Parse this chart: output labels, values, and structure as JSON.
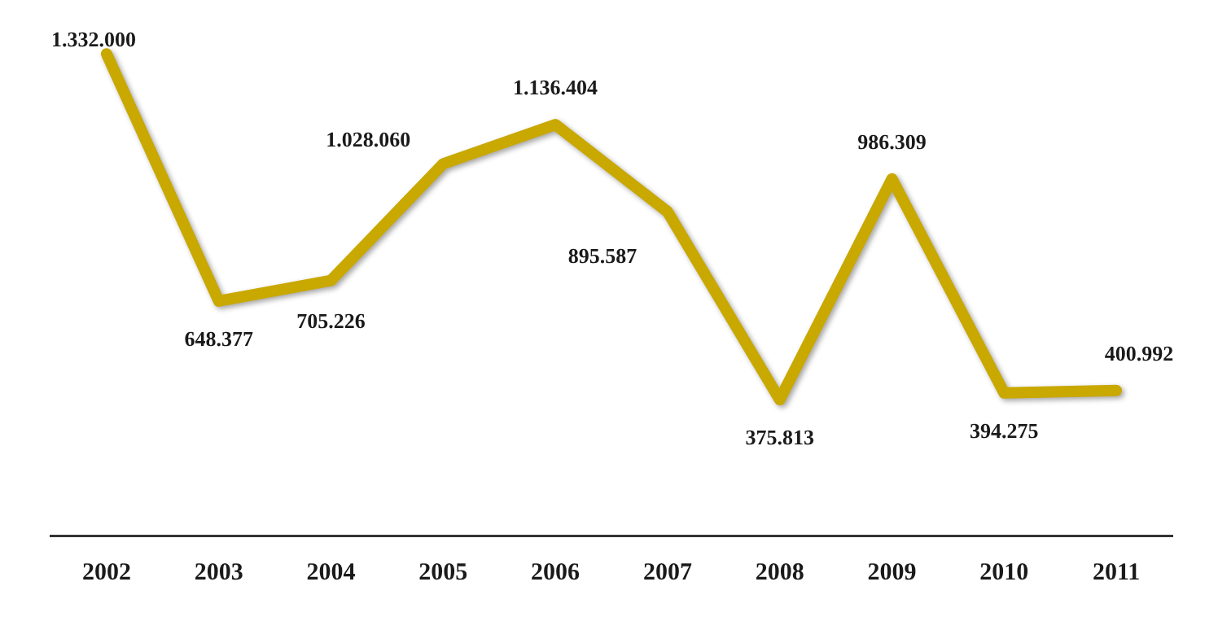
{
  "chart_data": {
    "type": "line",
    "categories": [
      "2002",
      "2003",
      "2004",
      "2005",
      "2006",
      "2007",
      "2008",
      "2009",
      "2010",
      "2011"
    ],
    "series": [
      {
        "color": "#c9a800",
        "values": [
          1332000,
          648377,
          705226,
          1028060,
          1136404,
          895587,
          375813,
          986309,
          394275,
          400992
        ],
        "value_labels": [
          "1.332.000",
          "648.377",
          "705.226",
          "1.028.060",
          "1.136.404",
          "895.587",
          "375.813",
          "986.309",
          "394.275",
          "400.992"
        ]
      }
    ],
    "tick_labels": "x",
    "grid": false,
    "legend": false,
    "marker": "none",
    "line_style": "solid"
  }
}
